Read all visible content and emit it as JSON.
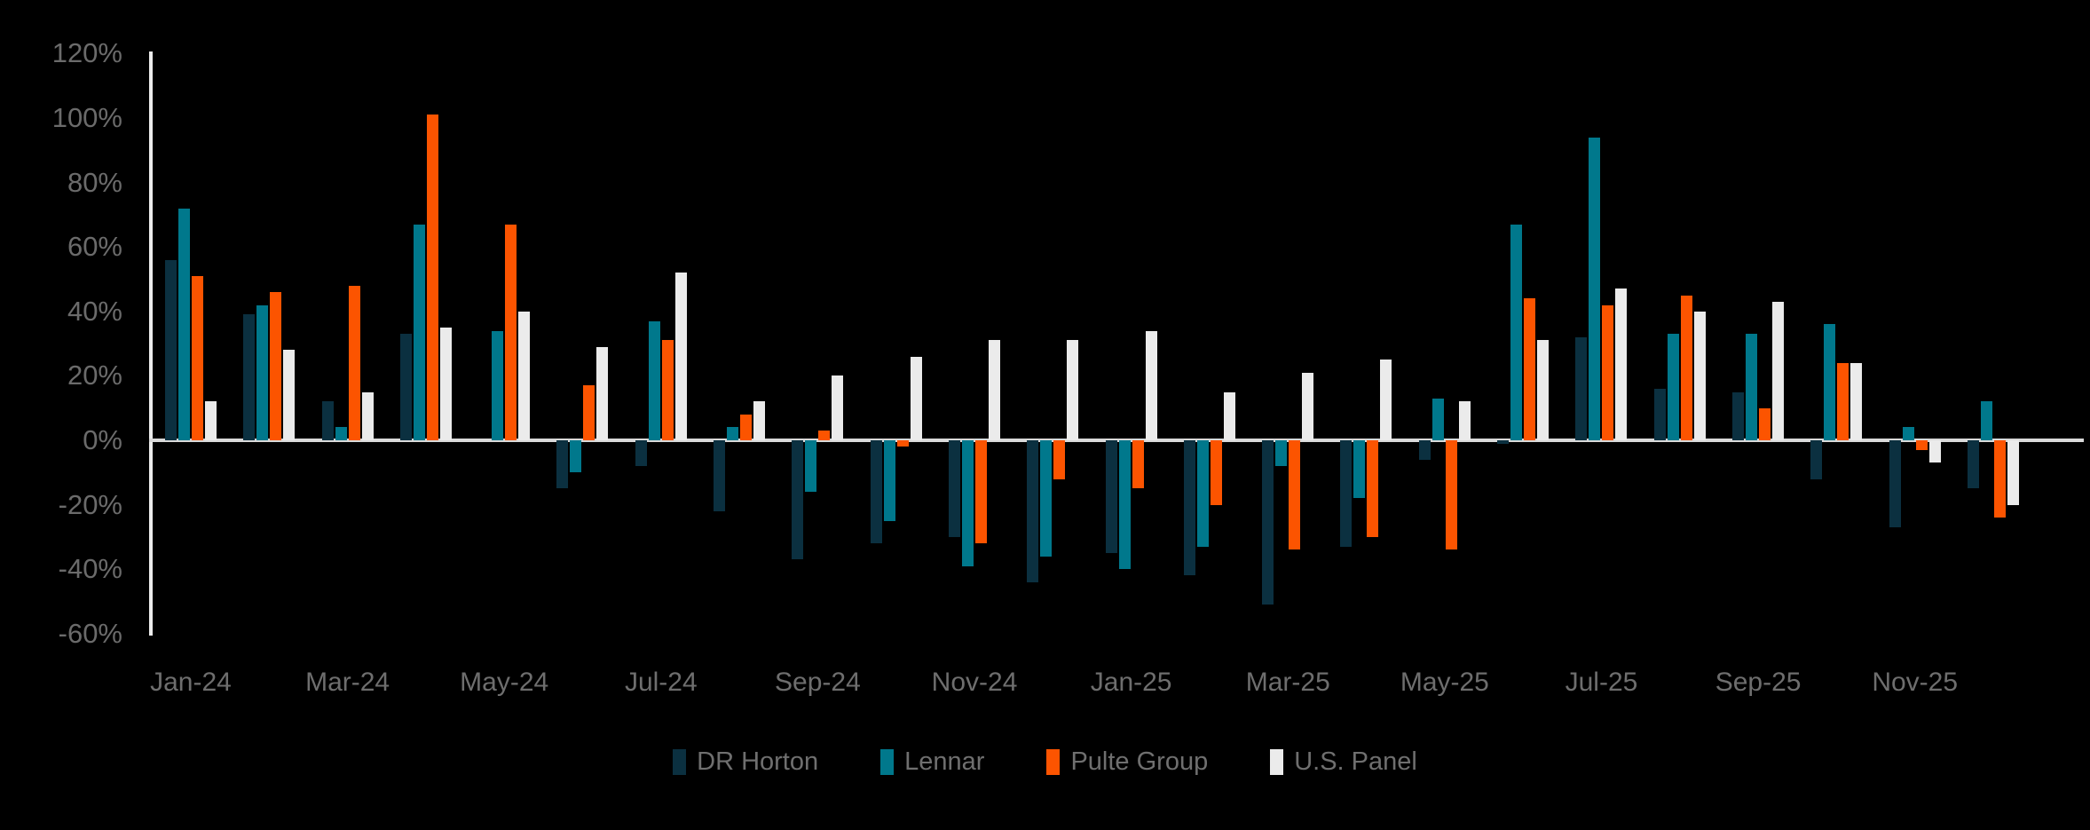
{
  "chart_data": {
    "type": "bar",
    "title": "",
    "background_color": "#000000",
    "axis_label_color": "#6b6b6b",
    "axis_line_color": "#ececec",
    "zero_line_color": "#d9d9d9",
    "grid": false,
    "legend_position": "bottom",
    "ylim": [
      -60,
      120
    ],
    "y_tick_step": 20,
    "y_ticks": [
      {
        "value": 120,
        "label": "120%"
      },
      {
        "value": 100,
        "label": "100%"
      },
      {
        "value": 80,
        "label": "80%"
      },
      {
        "value": 60,
        "label": "60%"
      },
      {
        "value": 40,
        "label": "40%"
      },
      {
        "value": 20,
        "label": "20%"
      },
      {
        "value": 0,
        "label": "0%"
      },
      {
        "value": -20,
        "label": "-20%"
      },
      {
        "value": -40,
        "label": "-40%"
      },
      {
        "value": -60,
        "label": "-60%"
      }
    ],
    "categories": [
      "Jan-24",
      "Feb-24",
      "Mar-24",
      "Apr-24",
      "May-24",
      "Jun-24",
      "Jul-24",
      "Aug-24",
      "Sep-24",
      "Oct-24",
      "Nov-24",
      "Dec-24",
      "Jan-25",
      "Feb-25",
      "Mar-25",
      "Apr-25",
      "May-25",
      "Jun-25",
      "Jul-25",
      "Aug-25",
      "Sep-25",
      "Oct-25",
      "Nov-25",
      "Dec-25"
    ],
    "x_tick_every": 2,
    "x_tick_labels": [
      "Jan-24",
      "Mar-24",
      "May-24",
      "Jul-24",
      "Sep-24",
      "Nov-24",
      "Jan-25",
      "Mar-25",
      "May-25",
      "Jul-25",
      "Sep-25",
      "Nov-25"
    ],
    "series": [
      {
        "name": "DR Horton",
        "color": "#0b3040",
        "values": [
          56,
          39,
          12,
          33,
          0,
          -15,
          -8,
          -22,
          -37,
          -32,
          -30,
          -44,
          -35,
          -42,
          -51,
          -33,
          -6,
          -1,
          32,
          16,
          15,
          -12,
          -27,
          -15
        ]
      },
      {
        "name": "Lennar",
        "color": "#00788c",
        "values": [
          72,
          42,
          4,
          67,
          34,
          -10,
          37,
          4,
          -16,
          -25,
          -39,
          -36,
          -40,
          -33,
          -8,
          -18,
          13,
          67,
          94,
          33,
          33,
          36,
          4,
          12
        ]
      },
      {
        "name": "Pulte Group",
        "color": "#fc5400",
        "values": [
          51,
          46,
          48,
          101,
          67,
          17,
          31,
          8,
          3,
          -2,
          -32,
          -12,
          -15,
          -20,
          -34,
          -30,
          -34,
          44,
          42,
          45,
          10,
          24,
          -3,
          -24
        ]
      },
      {
        "name": "U.S. Panel",
        "color": "#ebebeb",
        "values": [
          12,
          28,
          15,
          35,
          40,
          29,
          52,
          12,
          20,
          26,
          31,
          31,
          34,
          15,
          21,
          25,
          12,
          31,
          47,
          40,
          43,
          24,
          -7,
          -20
        ]
      }
    ]
  }
}
